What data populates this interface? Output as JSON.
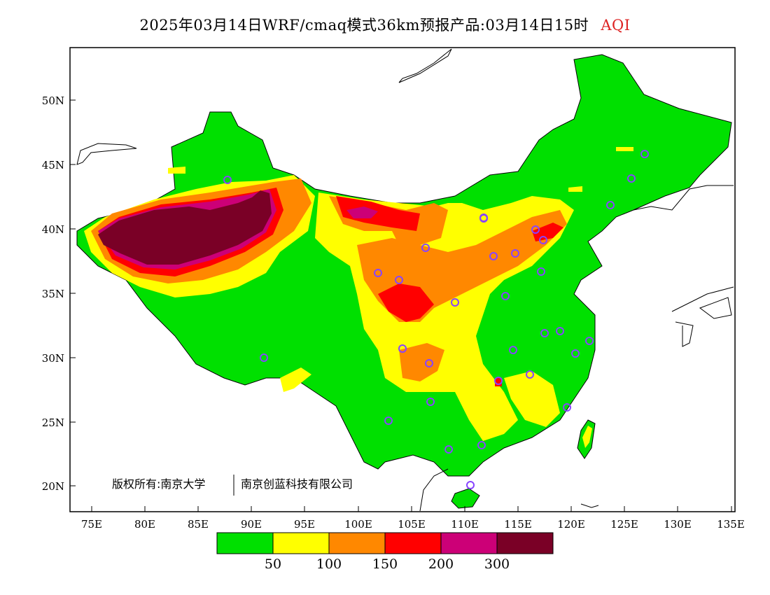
{
  "title": {
    "main": "2025年03月14日WRF/cmaq模式36km预报产品:03月14日15时",
    "variable": "AQI"
  },
  "axes": {
    "lat_ticks": [
      "50N",
      "45N",
      "40N",
      "35N",
      "30N",
      "25N",
      "20N"
    ],
    "lon_ticks": [
      "75E",
      "80E",
      "85E",
      "90E",
      "95E",
      "100E",
      "105E",
      "110E",
      "115E",
      "120E",
      "125E",
      "130E",
      "135E"
    ]
  },
  "legend": {
    "colors": [
      "#00e000",
      "#ffff00",
      "#ff8800",
      "#ff0000",
      "#cc0077",
      "#7a0026"
    ],
    "labels": [
      "50",
      "100",
      "150",
      "200",
      "300"
    ]
  },
  "copyright": {
    "left": "版权所有:南京大学",
    "right": "南京创蓝科技有限公司"
  },
  "colors": {
    "background_land": "#00e000",
    "frame": "#000000",
    "station_marker": "#8844ff"
  }
}
